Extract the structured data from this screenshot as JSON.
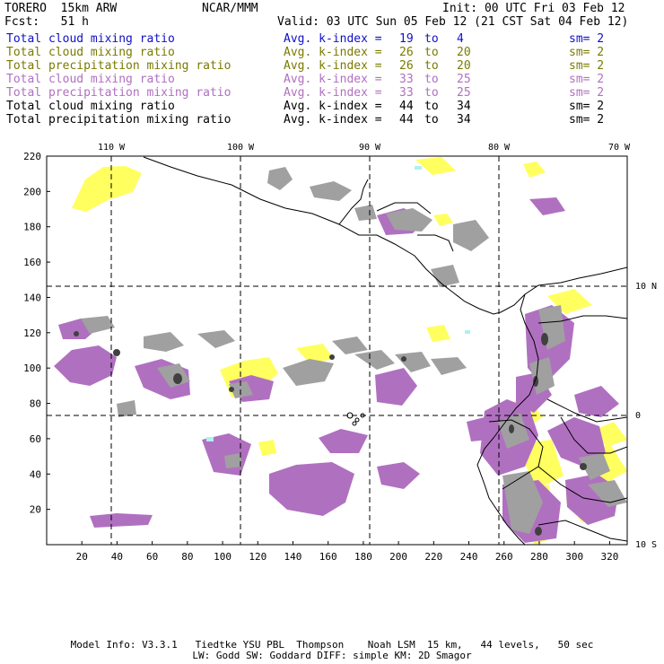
{
  "header": {
    "model": "TORERO  15km ARW",
    "org": "NCAR/MMM",
    "init": "Init: 00 UTC Fri 03 Feb 12",
    "fcst": "Fcst:   51 h",
    "valid": "Valid: 03 UTC Sun 05 Feb 12 (21 CST Sat 04 Feb 12)"
  },
  "legend": [
    {
      "label": "Total cloud mixing ratio",
      "index_label": "Avg. k-index =",
      "lo": "19",
      "to": "to",
      "hi": "4",
      "sm": "sm= 2",
      "color": "#1010c8"
    },
    {
      "label": "Total cloud mixing ratio",
      "index_label": "Avg. k-index =",
      "lo": "26",
      "to": "to",
      "hi": "20",
      "sm": "sm= 2",
      "color": "#7a7a00"
    },
    {
      "label": "Total precipitation mixing ratio",
      "index_label": "Avg. k-index =",
      "lo": "26",
      "to": "to",
      "hi": "20",
      "sm": "sm= 2",
      "color": "#7a7a00"
    },
    {
      "label": "Total cloud mixing ratio",
      "index_label": "Avg. k-index =",
      "lo": "33",
      "to": "to",
      "hi": "25",
      "sm": "sm= 2",
      "color": "#b070c0"
    },
    {
      "label": "Total precipitation mixing ratio",
      "index_label": "Avg. k-index =",
      "lo": "33",
      "to": "to",
      "hi": "25",
      "sm": "sm= 2",
      "color": "#b070c0"
    },
    {
      "label": "Total cloud mixing ratio",
      "index_label": "Avg. k-index =",
      "lo": "44",
      "to": "to",
      "hi": "34",
      "sm": "sm= 2",
      "color": "#000000"
    },
    {
      "label": "Total precipitation mixing ratio",
      "index_label": "Avg. k-index =",
      "lo": "44",
      "to": "to",
      "hi": "34",
      "sm": "sm= 2",
      "color": "#000000"
    }
  ],
  "map": {
    "lon_labels": [
      "110 W",
      "100 W",
      "90 W",
      "80 W",
      "70 W"
    ],
    "lat_labels": [
      "10 N",
      "0",
      "10 S"
    ],
    "x_ticks": [
      "20",
      "40",
      "60",
      "80",
      "100",
      "120",
      "140",
      "160",
      "180",
      "200",
      "220",
      "240",
      "260",
      "280",
      "300",
      "320"
    ],
    "y_ticks": [
      "220",
      "200",
      "180",
      "160",
      "140",
      "120",
      "100",
      "80",
      "60",
      "40",
      "20"
    ],
    "colors": {
      "cloud_light": "#ffff60",
      "precip_purple": "#b070c0",
      "cloud_gray": "#a0a0a0",
      "cloud_dark": "#404040",
      "ice_cyan": "#b0f0f0"
    }
  },
  "footer": {
    "line1": "Model Info: V3.3.1   Tiedtke YSU PBL  Thompson    Noah LSM  15 km,   44 levels,   50 sec",
    "line2": "LW: Godd SW: Goddard DIFF: simple KM: 2D Smagor"
  }
}
